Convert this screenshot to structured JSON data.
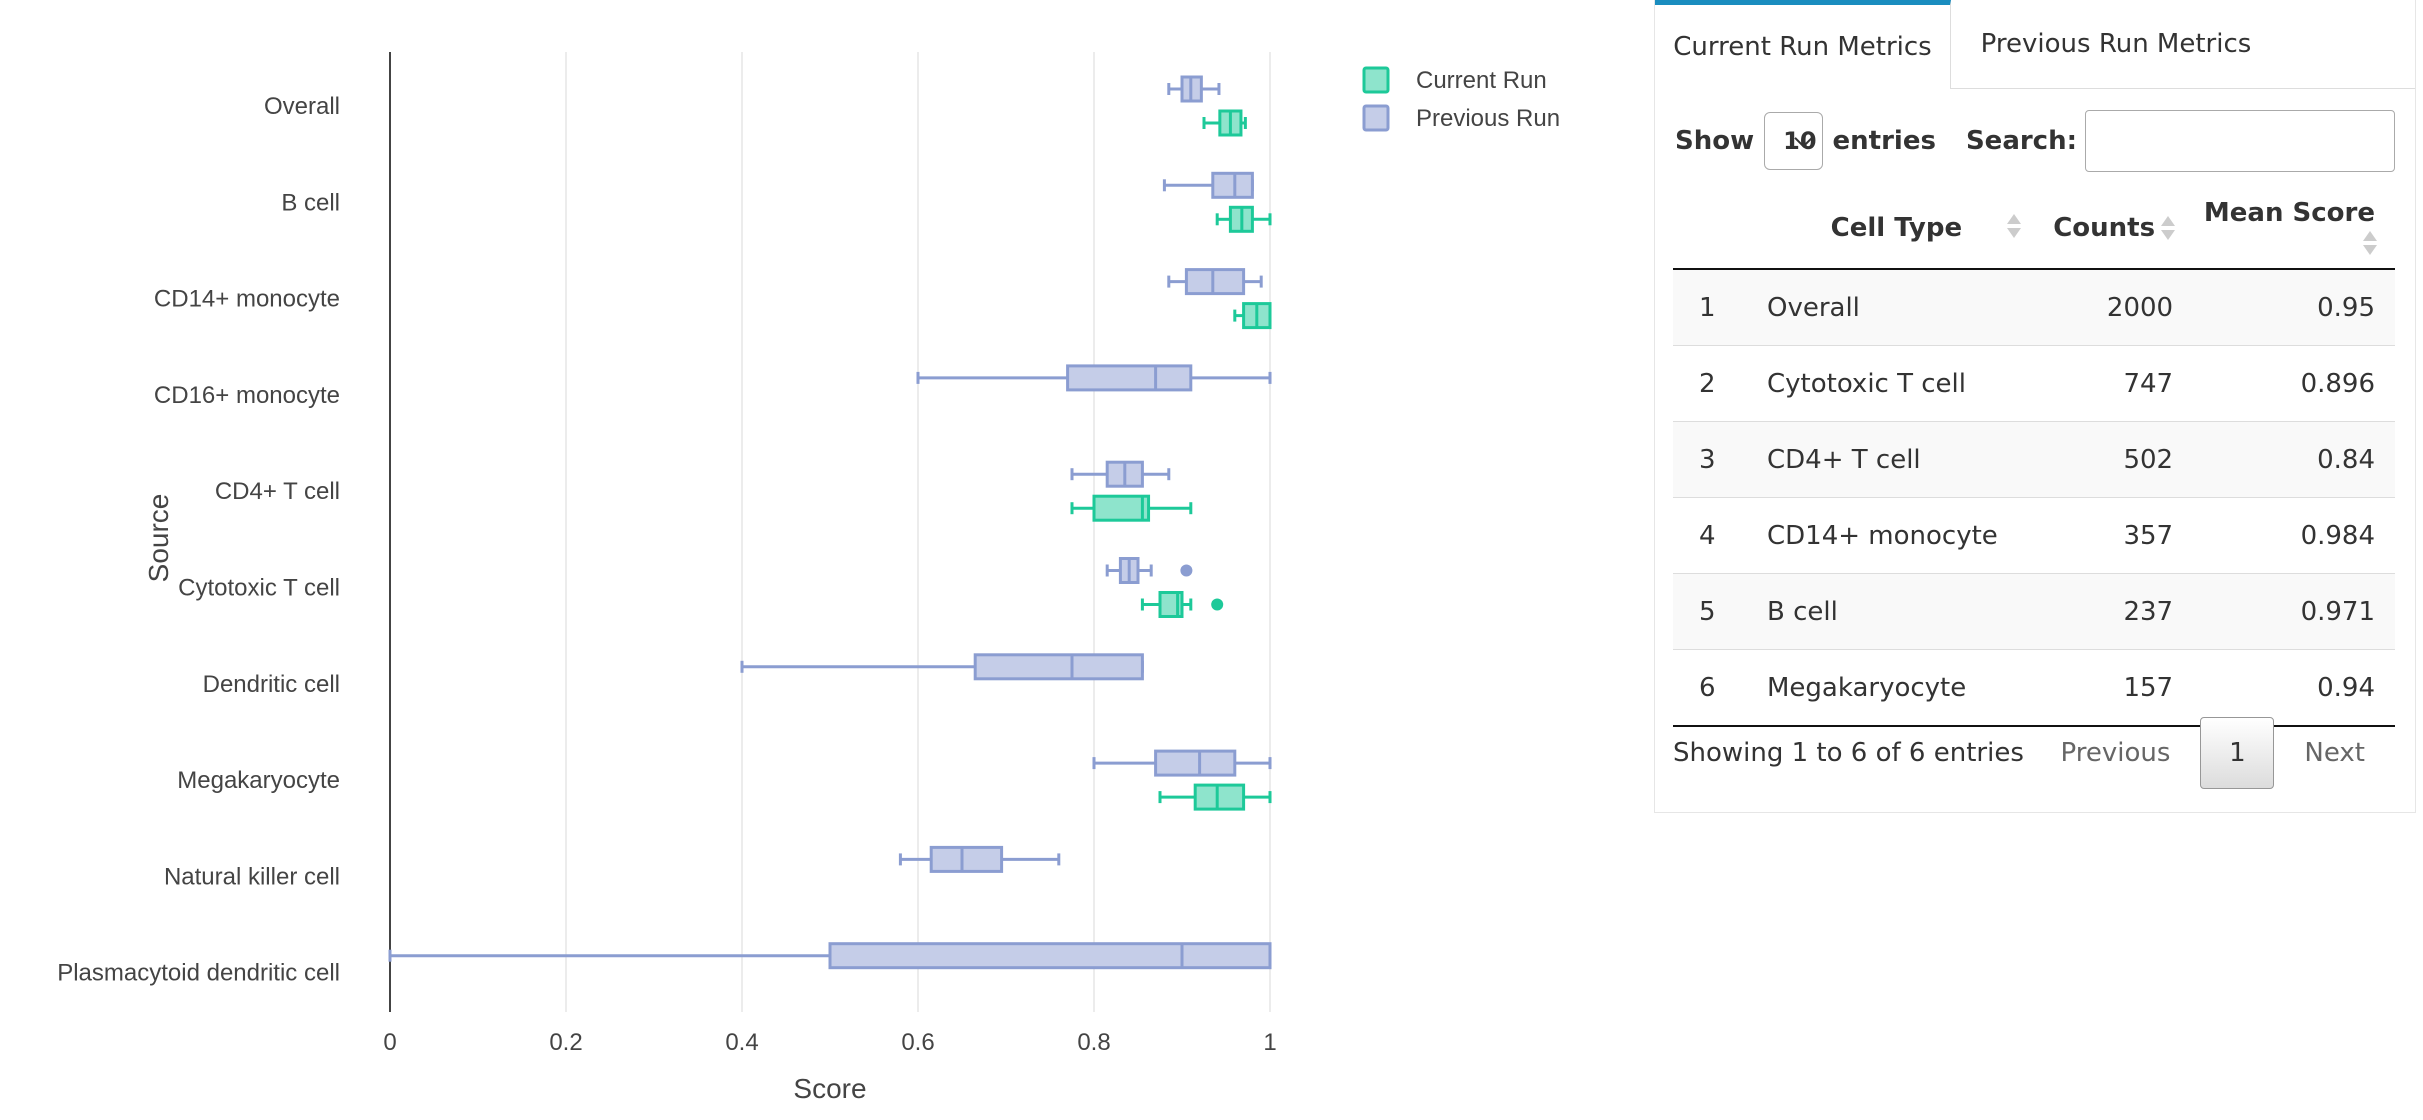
{
  "chart_data": {
    "type": "box",
    "orientation": "horizontal",
    "xlabel": "Score",
    "ylabel": "Source",
    "xlim": [
      0,
      1
    ],
    "x_ticks": [
      "0",
      "0.2",
      "0.4",
      "0.6",
      "0.8",
      "1"
    ],
    "x_tick_values": [
      0,
      0.2,
      0.4,
      0.6,
      0.8,
      1
    ],
    "grid": true,
    "legend_position": "top-right",
    "categories": [
      "Overall",
      "B cell",
      "CD14+ monocyte",
      "CD16+ monocyte",
      "CD4+ T cell",
      "Cytotoxic T cell",
      "Dendritic cell",
      "Megakaryocyte",
      "Natural killer cell",
      "Plasmacytoid dendritic cell"
    ],
    "series": [
      {
        "name": "Current Run",
        "color": "#1dc999",
        "fill": "#8ee4cc",
        "boxes": [
          {
            "category": "Overall",
            "min": 0.925,
            "q1": 0.943,
            "median": 0.955,
            "q3": 0.967,
            "max": 0.972,
            "outliers": []
          },
          {
            "category": "B cell",
            "min": 0.94,
            "q1": 0.955,
            "median": 0.968,
            "q3": 0.98,
            "max": 1.0,
            "outliers": []
          },
          {
            "category": "CD14+ monocyte",
            "min": 0.96,
            "q1": 0.97,
            "median": 0.985,
            "q3": 1.0,
            "max": 1.0,
            "outliers": []
          },
          {
            "category": "CD4+ T cell",
            "min": 0.775,
            "q1": 0.8,
            "median": 0.855,
            "q3": 0.862,
            "max": 0.91,
            "outliers": []
          },
          {
            "category": "Cytotoxic T cell",
            "min": 0.855,
            "q1": 0.875,
            "median": 0.895,
            "q3": 0.9,
            "max": 0.91,
            "outliers": [
              0.94
            ]
          },
          {
            "category": "Megakaryocyte",
            "min": 0.875,
            "q1": 0.915,
            "median": 0.94,
            "q3": 0.97,
            "max": 1.0,
            "outliers": []
          }
        ]
      },
      {
        "name": "Previous Run",
        "color": "#8b9dd1",
        "fill": "#c5cde8",
        "boxes": [
          {
            "category": "Overall",
            "min": 0.885,
            "q1": 0.9,
            "median": 0.91,
            "q3": 0.922,
            "max": 0.942,
            "outliers": []
          },
          {
            "category": "B cell",
            "min": 0.88,
            "q1": 0.935,
            "median": 0.96,
            "q3": 0.98,
            "max": 0.98,
            "outliers": []
          },
          {
            "category": "CD14+ monocyte",
            "min": 0.885,
            "q1": 0.905,
            "median": 0.935,
            "q3": 0.97,
            "max": 0.99,
            "outliers": []
          },
          {
            "category": "CD16+ monocyte",
            "min": 0.6,
            "q1": 0.77,
            "median": 0.87,
            "q3": 0.91,
            "max": 1.0,
            "outliers": []
          },
          {
            "category": "CD4+ T cell",
            "min": 0.775,
            "q1": 0.815,
            "median": 0.835,
            "q3": 0.855,
            "max": 0.885,
            "outliers": []
          },
          {
            "category": "Cytotoxic T cell",
            "min": 0.815,
            "q1": 0.83,
            "median": 0.84,
            "q3": 0.85,
            "max": 0.865,
            "outliers": [
              0.905
            ]
          },
          {
            "category": "Dendritic cell",
            "min": 0.4,
            "q1": 0.665,
            "median": 0.775,
            "q3": 0.855,
            "max": 0.855,
            "outliers": []
          },
          {
            "category": "Megakaryocyte",
            "min": 0.8,
            "q1": 0.87,
            "median": 0.92,
            "q3": 0.96,
            "max": 1.0,
            "outliers": []
          },
          {
            "category": "Natural killer cell",
            "min": 0.58,
            "q1": 0.615,
            "median": 0.65,
            "q3": 0.695,
            "max": 0.76,
            "outliers": []
          },
          {
            "category": "Plasmacytoid dendritic cell",
            "min": 0.0,
            "q1": 0.5,
            "median": 0.9,
            "q3": 1.0,
            "max": 1.0,
            "outliers": []
          }
        ]
      }
    ]
  },
  "tabs": [
    {
      "label": "Current Run Metrics",
      "active": true
    },
    {
      "label": "Previous Run Metrics",
      "active": false
    }
  ],
  "table": {
    "show_label": "Show",
    "page_size": "10",
    "entries_label": "entries",
    "search_label": "Search:",
    "search_value": "",
    "columns": [
      "Cell Type",
      "Counts",
      "Mean Score"
    ],
    "rows": [
      {
        "index": "1",
        "cell_type": "Overall",
        "counts": "2000",
        "mean_score": "0.95"
      },
      {
        "index": "2",
        "cell_type": "Cytotoxic T cell",
        "counts": "747",
        "mean_score": "0.896"
      },
      {
        "index": "3",
        "cell_type": "CD4+ T cell",
        "counts": "502",
        "mean_score": "0.84"
      },
      {
        "index": "4",
        "cell_type": "CD14+ monocyte",
        "counts": "357",
        "mean_score": "0.984"
      },
      {
        "index": "5",
        "cell_type": "B cell",
        "counts": "237",
        "mean_score": "0.971"
      },
      {
        "index": "6",
        "cell_type": "Megakaryocyte",
        "counts": "157",
        "mean_score": "0.94"
      }
    ],
    "info": "Showing 1 to 6 of 6 entries",
    "pager": {
      "previous": "Previous",
      "current": "1",
      "next": "Next"
    }
  }
}
